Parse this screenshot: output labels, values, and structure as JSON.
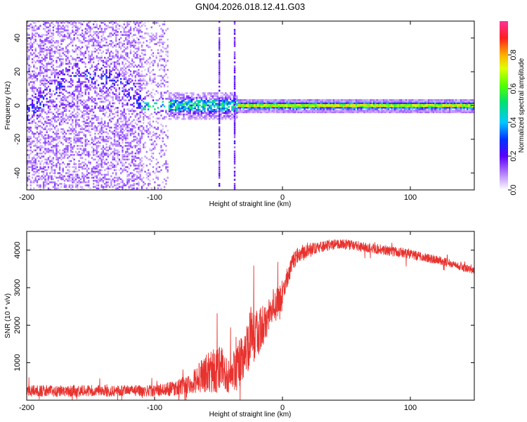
{
  "title": "GN04.2026.018.12.41.G03",
  "colors": {
    "snr_line": "#e8322e",
    "frame": "#000000",
    "background": "#ffffff"
  },
  "chart_data": [
    {
      "type": "heatmap",
      "title": "GN04.2026.018.12.41.G03",
      "xlabel": "Height of straight line (km)",
      "ylabel": "Frequency (Hz)",
      "xlim": [
        -200,
        150
      ],
      "ylim": [
        -50,
        50
      ],
      "x_ticks": [
        -200,
        -100,
        0,
        100
      ],
      "y_ticks": [
        -40,
        -20,
        0,
        20,
        40
      ],
      "colorbar": {
        "label": "Normalized spectral amplitude",
        "range": [
          0,
          1
        ],
        "ticks": [
          "0.0",
          "0.2",
          "0.4",
          "0.6",
          "0.8"
        ],
        "tick_values": [
          0,
          0.2,
          0.4,
          0.6,
          0.8
        ]
      },
      "regions": [
        {
          "x_range": [
            -200,
            -110
          ],
          "freq_center": 0,
          "spread_hz": 50,
          "amplitude": "low-scattered",
          "ridge": "-200:-5, -180:10, -160:18, -130:15, -110:2"
        },
        {
          "x_range": [
            -110,
            -35
          ],
          "freq_center": 0,
          "spread_hz": 5,
          "amplitude": "mid"
        },
        {
          "x_range": [
            -35,
            150
          ],
          "freq_center": 0,
          "spread_hz": 2,
          "amplitude": "high"
        }
      ],
      "vertical_stripes_km": [
        -50,
        -38
      ]
    },
    {
      "type": "line",
      "xlabel": "Height of straight line (km)",
      "ylabel": "SNR (10 * v/v)",
      "xlim": [
        -200,
        150
      ],
      "ylim": [
        0,
        4500
      ],
      "x_ticks": [
        -200,
        -100,
        0,
        100
      ],
      "y_ticks": [
        1000,
        2000,
        3000,
        4000
      ],
      "series": [
        {
          "name": "SNR",
          "x": [
            -200,
            -150,
            -100,
            -90,
            -80,
            -70,
            -60,
            -50,
            -40,
            -30,
            -25,
            -20,
            -10,
            0,
            5,
            10,
            15,
            20,
            30,
            40,
            50,
            60,
            70,
            80,
            90,
            100,
            110,
            120,
            130,
            140,
            150
          ],
          "values": [
            250,
            250,
            250,
            290,
            350,
            500,
            700,
            850,
            600,
            1200,
            1700,
            1750,
            2300,
            2800,
            3400,
            3800,
            3950,
            4000,
            4100,
            4150,
            4150,
            4100,
            4050,
            4000,
            3950,
            3900,
            3800,
            3750,
            3650,
            3550,
            3450
          ],
          "noise_amplitude": [
            150,
            150,
            150,
            180,
            220,
            300,
            500,
            650,
            500,
            700,
            800,
            650,
            450,
            400,
            300,
            250,
            200,
            180,
            150,
            140,
            130,
            130,
            130,
            130,
            130,
            130,
            120,
            110,
            110,
            100,
            100
          ]
        }
      ]
    }
  ]
}
